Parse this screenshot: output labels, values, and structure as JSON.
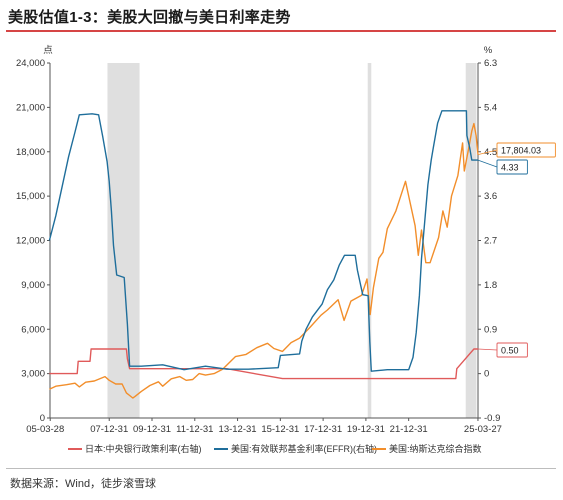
{
  "title": "美股估值1-3：美股大回撤与美日利率走势",
  "source": "数据来源：Wind，徒步滚雪球",
  "chart_data": {
    "type": "line",
    "left_axis": {
      "unit": "点",
      "min": 0,
      "max": 24000,
      "ticks": [
        "0",
        "3,000",
        "6,000",
        "9,000",
        "12,000",
        "15,000",
        "18,000",
        "21,000",
        "24,000"
      ]
    },
    "right_axis": {
      "unit": "%",
      "min": -0.9,
      "max": 6.3,
      "ticks": [
        "-0.9",
        "0",
        "0.9",
        "1.8",
        "2.7",
        "3.6",
        "4.5",
        "5.4",
        "6.3"
      ]
    },
    "x_axis": {
      "start": "2005-03-28",
      "end": "2025-03-27",
      "ticks": [
        "05-03-28",
        "07-12-31",
        "09-12-31",
        "11-12-31",
        "13-12-31",
        "15-12-31",
        "17-12-31",
        "19-12-31",
        "21-12-31",
        "25-03-27"
      ]
    },
    "shaded_periods": [
      [
        "2007-12",
        "2009-06"
      ],
      [
        "2020-02",
        "2020-04"
      ],
      [
        "2024-09",
        "2025-03"
      ]
    ],
    "series": [
      {
        "name": "日本:中央银行政策利率(右轴)",
        "axis": "right",
        "color": "#e05a5a",
        "points": [
          [
            2005.2,
            0.0
          ],
          [
            2006.5,
            0.0
          ],
          [
            2006.55,
            0.25
          ],
          [
            2007.1,
            0.25
          ],
          [
            2007.15,
            0.5
          ],
          [
            2008.8,
            0.5
          ],
          [
            2008.85,
            0.3
          ],
          [
            2008.95,
            0.1
          ],
          [
            2013.5,
            0.1
          ],
          [
            2016.1,
            -0.1
          ],
          [
            2024.2,
            -0.1
          ],
          [
            2024.25,
            0.1
          ],
          [
            2024.55,
            0.25
          ],
          [
            2025.05,
            0.5
          ],
          [
            2025.24,
            0.5
          ]
        ]
      },
      {
        "name": "美国:有效联邦基金利率(EFFR)(右轴)",
        "axis": "right",
        "color": "#1f6e9b",
        "points": [
          [
            2005.2,
            2.7
          ],
          [
            2005.5,
            3.2
          ],
          [
            2005.8,
            3.8
          ],
          [
            2006.1,
            4.4
          ],
          [
            2006.4,
            4.9
          ],
          [
            2006.6,
            5.25
          ],
          [
            2007.2,
            5.27
          ],
          [
            2007.5,
            5.25
          ],
          [
            2007.7,
            4.8
          ],
          [
            2007.9,
            4.3
          ],
          [
            2008.0,
            3.9
          ],
          [
            2008.1,
            3.3
          ],
          [
            2008.2,
            2.6
          ],
          [
            2008.35,
            2.0
          ],
          [
            2008.7,
            1.95
          ],
          [
            2008.85,
            1.0
          ],
          [
            2008.95,
            0.15
          ],
          [
            2009.5,
            0.15
          ],
          [
            2010.5,
            0.18
          ],
          [
            2011.5,
            0.08
          ],
          [
            2012.5,
            0.15
          ],
          [
            2013.5,
            0.09
          ],
          [
            2014.5,
            0.09
          ],
          [
            2015.9,
            0.12
          ],
          [
            2016.0,
            0.37
          ],
          [
            2016.9,
            0.4
          ],
          [
            2017.0,
            0.66
          ],
          [
            2017.2,
            0.9
          ],
          [
            2017.5,
            1.15
          ],
          [
            2017.95,
            1.41
          ],
          [
            2018.2,
            1.7
          ],
          [
            2018.5,
            1.9
          ],
          [
            2018.75,
            2.2
          ],
          [
            2019.0,
            2.4
          ],
          [
            2019.5,
            2.4
          ],
          [
            2019.6,
            2.1
          ],
          [
            2019.85,
            1.6
          ],
          [
            2020.1,
            1.58
          ],
          [
            2020.18,
            0.65
          ],
          [
            2020.25,
            0.05
          ],
          [
            2021.0,
            0.08
          ],
          [
            2022.0,
            0.08
          ],
          [
            2022.2,
            0.33
          ],
          [
            2022.35,
            0.83
          ],
          [
            2022.5,
            1.58
          ],
          [
            2022.6,
            2.33
          ],
          [
            2022.75,
            3.08
          ],
          [
            2022.9,
            3.83
          ],
          [
            2023.05,
            4.33
          ],
          [
            2023.15,
            4.58
          ],
          [
            2023.35,
            5.08
          ],
          [
            2023.55,
            5.33
          ],
          [
            2024.7,
            5.33
          ],
          [
            2024.72,
            4.83
          ],
          [
            2024.85,
            4.58
          ],
          [
            2024.95,
            4.33
          ],
          [
            2025.24,
            4.33
          ]
        ]
      },
      {
        "name": "美国:纳斯达克综合指数",
        "axis": "left",
        "color": "#f28e2b",
        "points": [
          [
            2005.2,
            1950
          ],
          [
            2005.5,
            2150
          ],
          [
            2006.0,
            2250
          ],
          [
            2006.4,
            2350
          ],
          [
            2006.6,
            2100
          ],
          [
            2006.9,
            2420
          ],
          [
            2007.3,
            2500
          ],
          [
            2007.8,
            2800
          ],
          [
            2008.0,
            2550
          ],
          [
            2008.3,
            2300
          ],
          [
            2008.6,
            2300
          ],
          [
            2008.8,
            1700
          ],
          [
            2009.1,
            1350
          ],
          [
            2009.2,
            1450
          ],
          [
            2009.5,
            1800
          ],
          [
            2009.9,
            2200
          ],
          [
            2010.3,
            2450
          ],
          [
            2010.5,
            2150
          ],
          [
            2010.9,
            2650
          ],
          [
            2011.3,
            2800
          ],
          [
            2011.6,
            2550
          ],
          [
            2011.9,
            2600
          ],
          [
            2012.2,
            3000
          ],
          [
            2012.5,
            2900
          ],
          [
            2012.9,
            3000
          ],
          [
            2013.3,
            3300
          ],
          [
            2013.9,
            4150
          ],
          [
            2014.4,
            4300
          ],
          [
            2014.9,
            4750
          ],
          [
            2015.4,
            5050
          ],
          [
            2015.7,
            4700
          ],
          [
            2016.1,
            4500
          ],
          [
            2016.5,
            5100
          ],
          [
            2016.9,
            5400
          ],
          [
            2017.4,
            6150
          ],
          [
            2017.9,
            6950
          ],
          [
            2018.2,
            7300
          ],
          [
            2018.7,
            8000
          ],
          [
            2018.98,
            6600
          ],
          [
            2019.3,
            7900
          ],
          [
            2019.8,
            8300
          ],
          [
            2020.05,
            9400
          ],
          [
            2020.2,
            7000
          ],
          [
            2020.35,
            8800
          ],
          [
            2020.6,
            10800
          ],
          [
            2020.8,
            11200
          ],
          [
            2021.0,
            12800
          ],
          [
            2021.4,
            14000
          ],
          [
            2021.85,
            16000
          ],
          [
            2022.0,
            15000
          ],
          [
            2022.3,
            13000
          ],
          [
            2022.45,
            11000
          ],
          [
            2022.6,
            12700
          ],
          [
            2022.8,
            10500
          ],
          [
            2023.0,
            10500
          ],
          [
            2023.4,
            12200
          ],
          [
            2023.6,
            14000
          ],
          [
            2023.8,
            12900
          ],
          [
            2024.0,
            15000
          ],
          [
            2024.3,
            16400
          ],
          [
            2024.52,
            18600
          ],
          [
            2024.6,
            16700
          ],
          [
            2024.8,
            18200
          ],
          [
            2024.95,
            19400
          ],
          [
            2025.05,
            19900
          ],
          [
            2025.15,
            19100
          ],
          [
            2025.24,
            17804
          ]
        ]
      }
    ],
    "end_labels": [
      {
        "series": 2,
        "text": "17,804.03"
      },
      {
        "series": 1,
        "text": "4.33"
      },
      {
        "series": 0,
        "text": "0.50"
      }
    ]
  }
}
